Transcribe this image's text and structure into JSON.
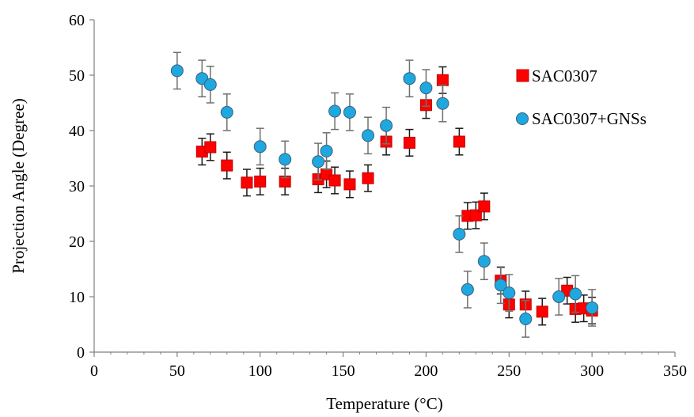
{
  "chart_data": {
    "type": "scatter",
    "title": "",
    "xlabel": "Temperature (°C)",
    "ylabel": "Projection Angle (Degree)",
    "xlim": [
      0,
      350
    ],
    "ylim": [
      0,
      60
    ],
    "xticks": [
      0,
      50,
      100,
      150,
      200,
      250,
      300,
      350
    ],
    "yticks": [
      0,
      10,
      20,
      30,
      40,
      50,
      60
    ],
    "grid": false,
    "legend_position": "right",
    "series": [
      {
        "name": "SAC0307",
        "marker": "square",
        "color": "#ff0000",
        "points": [
          {
            "x": 65,
            "y": 36.2,
            "err": 2.4
          },
          {
            "x": 70,
            "y": 37.0,
            "err": 2.4
          },
          {
            "x": 80,
            "y": 33.7,
            "err": 2.4
          },
          {
            "x": 92,
            "y": 30.6,
            "err": 2.4
          },
          {
            "x": 100,
            "y": 30.8,
            "err": 2.4
          },
          {
            "x": 115,
            "y": 30.8,
            "err": 2.4
          },
          {
            "x": 135,
            "y": 31.2,
            "err": 2.4
          },
          {
            "x": 140,
            "y": 32.1,
            "err": 2.4
          },
          {
            "x": 145,
            "y": 31.0,
            "err": 2.4
          },
          {
            "x": 154,
            "y": 30.3,
            "err": 2.4
          },
          {
            "x": 165,
            "y": 31.4,
            "err": 2.4
          },
          {
            "x": 176,
            "y": 38.0,
            "err": 2.4
          },
          {
            "x": 190,
            "y": 37.8,
            "err": 2.4
          },
          {
            "x": 200,
            "y": 44.6,
            "err": 2.4
          },
          {
            "x": 210,
            "y": 49.1,
            "err": 2.4
          },
          {
            "x": 220,
            "y": 38.0,
            "err": 2.4
          },
          {
            "x": 225,
            "y": 24.6,
            "err": 2.4
          },
          {
            "x": 230,
            "y": 24.7,
            "err": 2.4
          },
          {
            "x": 235,
            "y": 26.3,
            "err": 2.4
          },
          {
            "x": 245,
            "y": 12.9,
            "err": 2.4
          },
          {
            "x": 250,
            "y": 8.6,
            "err": 2.4
          },
          {
            "x": 260,
            "y": 8.6,
            "err": 2.4
          },
          {
            "x": 270,
            "y": 7.3,
            "err": 2.4
          },
          {
            "x": 285,
            "y": 11.1,
            "err": 2.4
          },
          {
            "x": 290,
            "y": 7.8,
            "err": 2.4
          },
          {
            "x": 295,
            "y": 7.9,
            "err": 2.4
          },
          {
            "x": 300,
            "y": 7.5,
            "err": 2.4
          }
        ]
      },
      {
        "name": "SAC0307+GNSs",
        "marker": "circle",
        "color": "#1fa8e0",
        "points": [
          {
            "x": 50,
            "y": 50.8,
            "err": 3.3
          },
          {
            "x": 65,
            "y": 49.4,
            "err": 3.3
          },
          {
            "x": 70,
            "y": 48.3,
            "err": 3.3
          },
          {
            "x": 80,
            "y": 43.3,
            "err": 3.3
          },
          {
            "x": 100,
            "y": 37.1,
            "err": 3.3
          },
          {
            "x": 115,
            "y": 34.8,
            "err": 3.3
          },
          {
            "x": 135,
            "y": 34.4,
            "err": 3.3
          },
          {
            "x": 140,
            "y": 36.3,
            "err": 3.3
          },
          {
            "x": 145,
            "y": 43.5,
            "err": 3.3
          },
          {
            "x": 154,
            "y": 43.3,
            "err": 3.3
          },
          {
            "x": 165,
            "y": 39.1,
            "err": 3.3
          },
          {
            "x": 176,
            "y": 40.9,
            "err": 3.3
          },
          {
            "x": 190,
            "y": 49.4,
            "err": 3.3
          },
          {
            "x": 200,
            "y": 47.7,
            "err": 3.3
          },
          {
            "x": 210,
            "y": 44.9,
            "err": 3.3
          },
          {
            "x": 220,
            "y": 21.3,
            "err": 3.3
          },
          {
            "x": 225,
            "y": 11.3,
            "err": 3.3
          },
          {
            "x": 235,
            "y": 16.4,
            "err": 3.3
          },
          {
            "x": 245,
            "y": 12.1,
            "err": 3.3
          },
          {
            "x": 250,
            "y": 10.7,
            "err": 3.3
          },
          {
            "x": 260,
            "y": 6.0,
            "err": 3.3
          },
          {
            "x": 280,
            "y": 10.0,
            "err": 3.3
          },
          {
            "x": 290,
            "y": 10.5,
            "err": 3.3
          },
          {
            "x": 300,
            "y": 8.0,
            "err": 3.3
          }
        ]
      }
    ]
  }
}
